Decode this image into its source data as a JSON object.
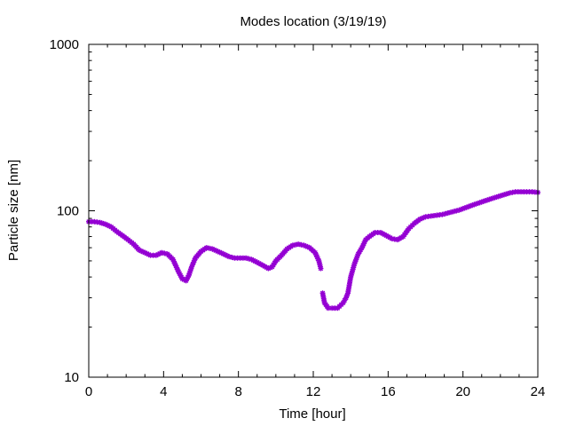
{
  "chart_data": {
    "type": "scatter",
    "title": "Modes location (3/19/19)",
    "xlabel": "Time [hour]",
    "ylabel": "Particle size [nm]",
    "xlim": [
      0,
      24
    ],
    "ylim": [
      10,
      1000
    ],
    "yscale": "log",
    "grid": false,
    "legend": "none",
    "xticks": [
      "0",
      "4",
      "8",
      "12",
      "16",
      "20",
      "24"
    ],
    "yticks": [
      "10",
      "100",
      "1000"
    ],
    "marker_color": "#9400d3",
    "series": [
      {
        "x": [
          0.0,
          0.3,
          0.6,
          0.9,
          1.2,
          1.5,
          1.8,
          2.1,
          2.4,
          2.7,
          3.0,
          3.3,
          3.6,
          3.9,
          4.2,
          4.5,
          4.8,
          5.0,
          5.2,
          5.35,
          5.5,
          5.7,
          6.0,
          6.3,
          6.6,
          6.9,
          7.2,
          7.5,
          7.8,
          8.1,
          8.4,
          8.7,
          9.0,
          9.3,
          9.6,
          9.8,
          10.0,
          10.3,
          10.6,
          10.9,
          11.2,
          11.5,
          11.8,
          12.1,
          12.3,
          12.4,
          12.5,
          12.6,
          12.8,
          13.0,
          13.3,
          13.6,
          13.75,
          13.85,
          14.0,
          14.2,
          14.4,
          14.6,
          14.8,
          15.0,
          15.3,
          15.6,
          15.9,
          16.2,
          16.5,
          16.8,
          17.1,
          17.4,
          17.7,
          18.0,
          18.3,
          18.6,
          18.9,
          19.2,
          19.5,
          19.8,
          20.1,
          20.4,
          20.7,
          21.0,
          21.3,
          21.6,
          21.9,
          22.2,
          22.5,
          22.8,
          23.1,
          23.4,
          23.7,
          24.0
        ],
        "y": [
          86,
          86,
          85,
          83,
          80,
          75,
          71,
          67,
          63,
          58,
          56,
          54,
          54,
          56,
          55,
          51,
          43,
          39,
          38,
          41,
          46,
          52,
          57,
          60,
          59,
          57,
          55,
          53,
          52,
          52,
          52,
          51,
          49,
          47,
          45,
          46,
          50,
          54,
          59,
          62,
          63,
          62,
          60,
          56,
          50,
          45,
          32,
          28,
          26,
          26,
          26,
          28,
          30,
          32,
          40,
          48,
          55,
          60,
          67,
          70,
          74,
          74,
          71,
          68,
          67,
          70,
          78,
          84,
          89,
          92,
          93,
          94,
          95,
          97,
          99,
          101,
          104,
          107,
          110,
          113,
          116,
          119,
          122,
          125,
          128,
          130,
          130,
          130,
          130,
          129
        ]
      }
    ]
  }
}
